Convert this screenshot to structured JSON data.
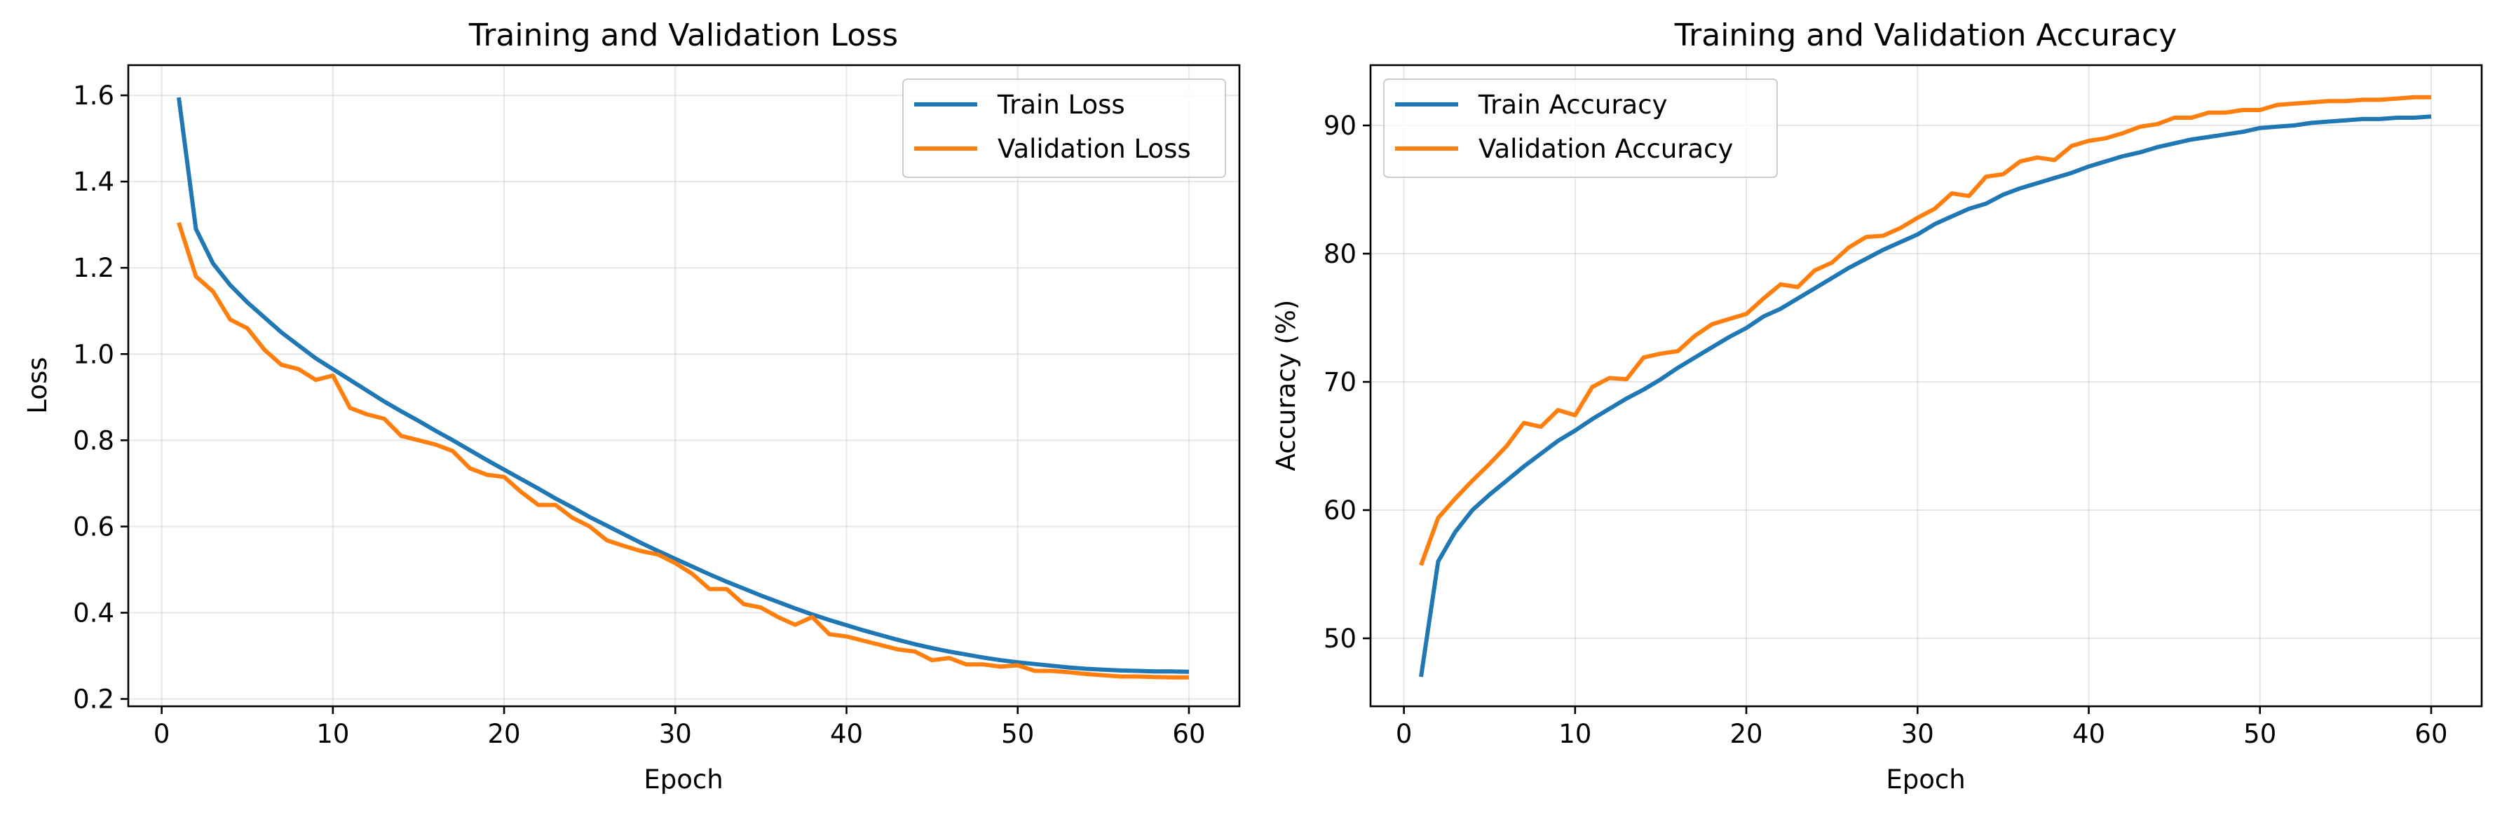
{
  "chart_data": [
    {
      "type": "line",
      "title": "Training and Validation Loss",
      "xlabel": "Epoch",
      "ylabel": "Loss",
      "xlim": [
        -1.95,
        62.95
      ],
      "ylim": [
        0.183,
        1.67
      ],
      "xticks": [
        0,
        10,
        20,
        30,
        40,
        50,
        60
      ],
      "yticks": [
        0.2,
        0.4,
        0.6,
        0.8,
        1.0,
        1.2,
        1.4,
        1.6
      ],
      "ytick_format": 1,
      "grid": true,
      "legend_loc": "top-right",
      "x": [
        1,
        2,
        3,
        4,
        5,
        6,
        7,
        8,
        9,
        10,
        11,
        12,
        13,
        14,
        15,
        16,
        17,
        18,
        19,
        20,
        21,
        22,
        23,
        24,
        25,
        26,
        27,
        28,
        29,
        30,
        31,
        32,
        33,
        34,
        35,
        36,
        37,
        38,
        39,
        40,
        41,
        42,
        43,
        44,
        45,
        46,
        47,
        48,
        49,
        50,
        51,
        52,
        53,
        54,
        55,
        56,
        57,
        58,
        59,
        60
      ],
      "series": [
        {
          "name": "Train Loss",
          "color": "#1f77b4",
          "values": [
            1.595,
            1.29,
            1.21,
            1.16,
            1.12,
            1.085,
            1.05,
            1.02,
            0.99,
            0.965,
            0.94,
            0.915,
            0.89,
            0.867,
            0.845,
            0.822,
            0.8,
            0.777,
            0.754,
            0.732,
            0.71,
            0.688,
            0.665,
            0.644,
            0.622,
            0.602,
            0.582,
            0.562,
            0.543,
            0.525,
            0.507,
            0.489,
            0.472,
            0.456,
            0.44,
            0.425,
            0.41,
            0.396,
            0.383,
            0.371,
            0.359,
            0.348,
            0.337,
            0.327,
            0.318,
            0.31,
            0.303,
            0.296,
            0.29,
            0.285,
            0.281,
            0.277,
            0.273,
            0.27,
            0.268,
            0.266,
            0.265,
            0.264,
            0.264,
            0.263
          ]
        },
        {
          "name": "Validation Loss",
          "color": "#ff7f0e",
          "values": [
            1.305,
            1.18,
            1.145,
            1.08,
            1.06,
            1.01,
            0.975,
            0.965,
            0.94,
            0.95,
            0.875,
            0.86,
            0.85,
            0.81,
            0.8,
            0.79,
            0.775,
            0.735,
            0.72,
            0.715,
            0.68,
            0.65,
            0.65,
            0.62,
            0.6,
            0.568,
            0.555,
            0.543,
            0.535,
            0.515,
            0.49,
            0.455,
            0.455,
            0.42,
            0.412,
            0.39,
            0.372,
            0.39,
            0.35,
            0.345,
            0.335,
            0.325,
            0.315,
            0.31,
            0.29,
            0.295,
            0.28,
            0.28,
            0.275,
            0.278,
            0.265,
            0.265,
            0.262,
            0.258,
            0.255,
            0.252,
            0.252,
            0.251,
            0.25,
            0.25
          ]
        }
      ]
    },
    {
      "type": "line",
      "title": "Training and Validation Accuracy",
      "xlabel": "Epoch",
      "ylabel": "Accuracy (%)",
      "xlim": [
        -1.95,
        62.95
      ],
      "ylim": [
        44.7,
        94.7
      ],
      "xticks": [
        0,
        10,
        20,
        30,
        40,
        50,
        60
      ],
      "yticks": [
        50,
        60,
        70,
        80,
        90
      ],
      "ytick_format": 0,
      "grid": true,
      "legend_loc": "top-left",
      "x": [
        1,
        2,
        3,
        4,
        5,
        6,
        7,
        8,
        9,
        10,
        11,
        12,
        13,
        14,
        15,
        16,
        17,
        18,
        19,
        20,
        21,
        22,
        23,
        24,
        25,
        26,
        27,
        28,
        29,
        30,
        31,
        32,
        33,
        34,
        35,
        36,
        37,
        38,
        39,
        40,
        41,
        42,
        43,
        44,
        45,
        46,
        47,
        48,
        49,
        50,
        51,
        52,
        53,
        54,
        55,
        56,
        57,
        58,
        59,
        60
      ],
      "series": [
        {
          "name": "Train Accuracy",
          "color": "#1f77b4",
          "values": [
            47.0,
            56.0,
            58.3,
            60.0,
            61.2,
            62.3,
            63.4,
            64.4,
            65.4,
            66.2,
            67.1,
            67.9,
            68.7,
            69.4,
            70.2,
            71.1,
            71.9,
            72.7,
            73.5,
            74.2,
            75.1,
            75.7,
            76.5,
            77.3,
            78.1,
            78.9,
            79.6,
            80.3,
            80.9,
            81.5,
            82.3,
            82.9,
            83.5,
            83.9,
            84.6,
            85.1,
            85.5,
            85.9,
            86.3,
            86.8,
            87.2,
            87.6,
            87.9,
            88.3,
            88.6,
            88.9,
            89.1,
            89.3,
            89.5,
            89.8,
            89.9,
            90.0,
            90.2,
            90.3,
            90.4,
            90.5,
            90.5,
            90.6,
            90.6,
            90.7
          ]
        },
        {
          "name": "Validation Accuracy",
          "color": "#ff7f0e",
          "values": [
            55.7,
            59.4,
            60.9,
            62.3,
            63.6,
            65.0,
            66.8,
            66.5,
            67.8,
            67.4,
            69.6,
            70.3,
            70.2,
            71.9,
            72.2,
            72.4,
            73.6,
            74.5,
            74.9,
            75.3,
            76.5,
            77.6,
            77.4,
            78.7,
            79.3,
            80.5,
            81.3,
            81.4,
            82.0,
            82.8,
            83.5,
            84.7,
            84.5,
            86.0,
            86.2,
            87.2,
            87.5,
            87.3,
            88.4,
            88.8,
            89.0,
            89.4,
            89.9,
            90.1,
            90.6,
            90.6,
            91.0,
            91.0,
            91.2,
            91.2,
            91.6,
            91.7,
            91.8,
            91.9,
            91.9,
            92.0,
            92.0,
            92.1,
            92.2,
            92.2
          ]
        }
      ]
    }
  ]
}
